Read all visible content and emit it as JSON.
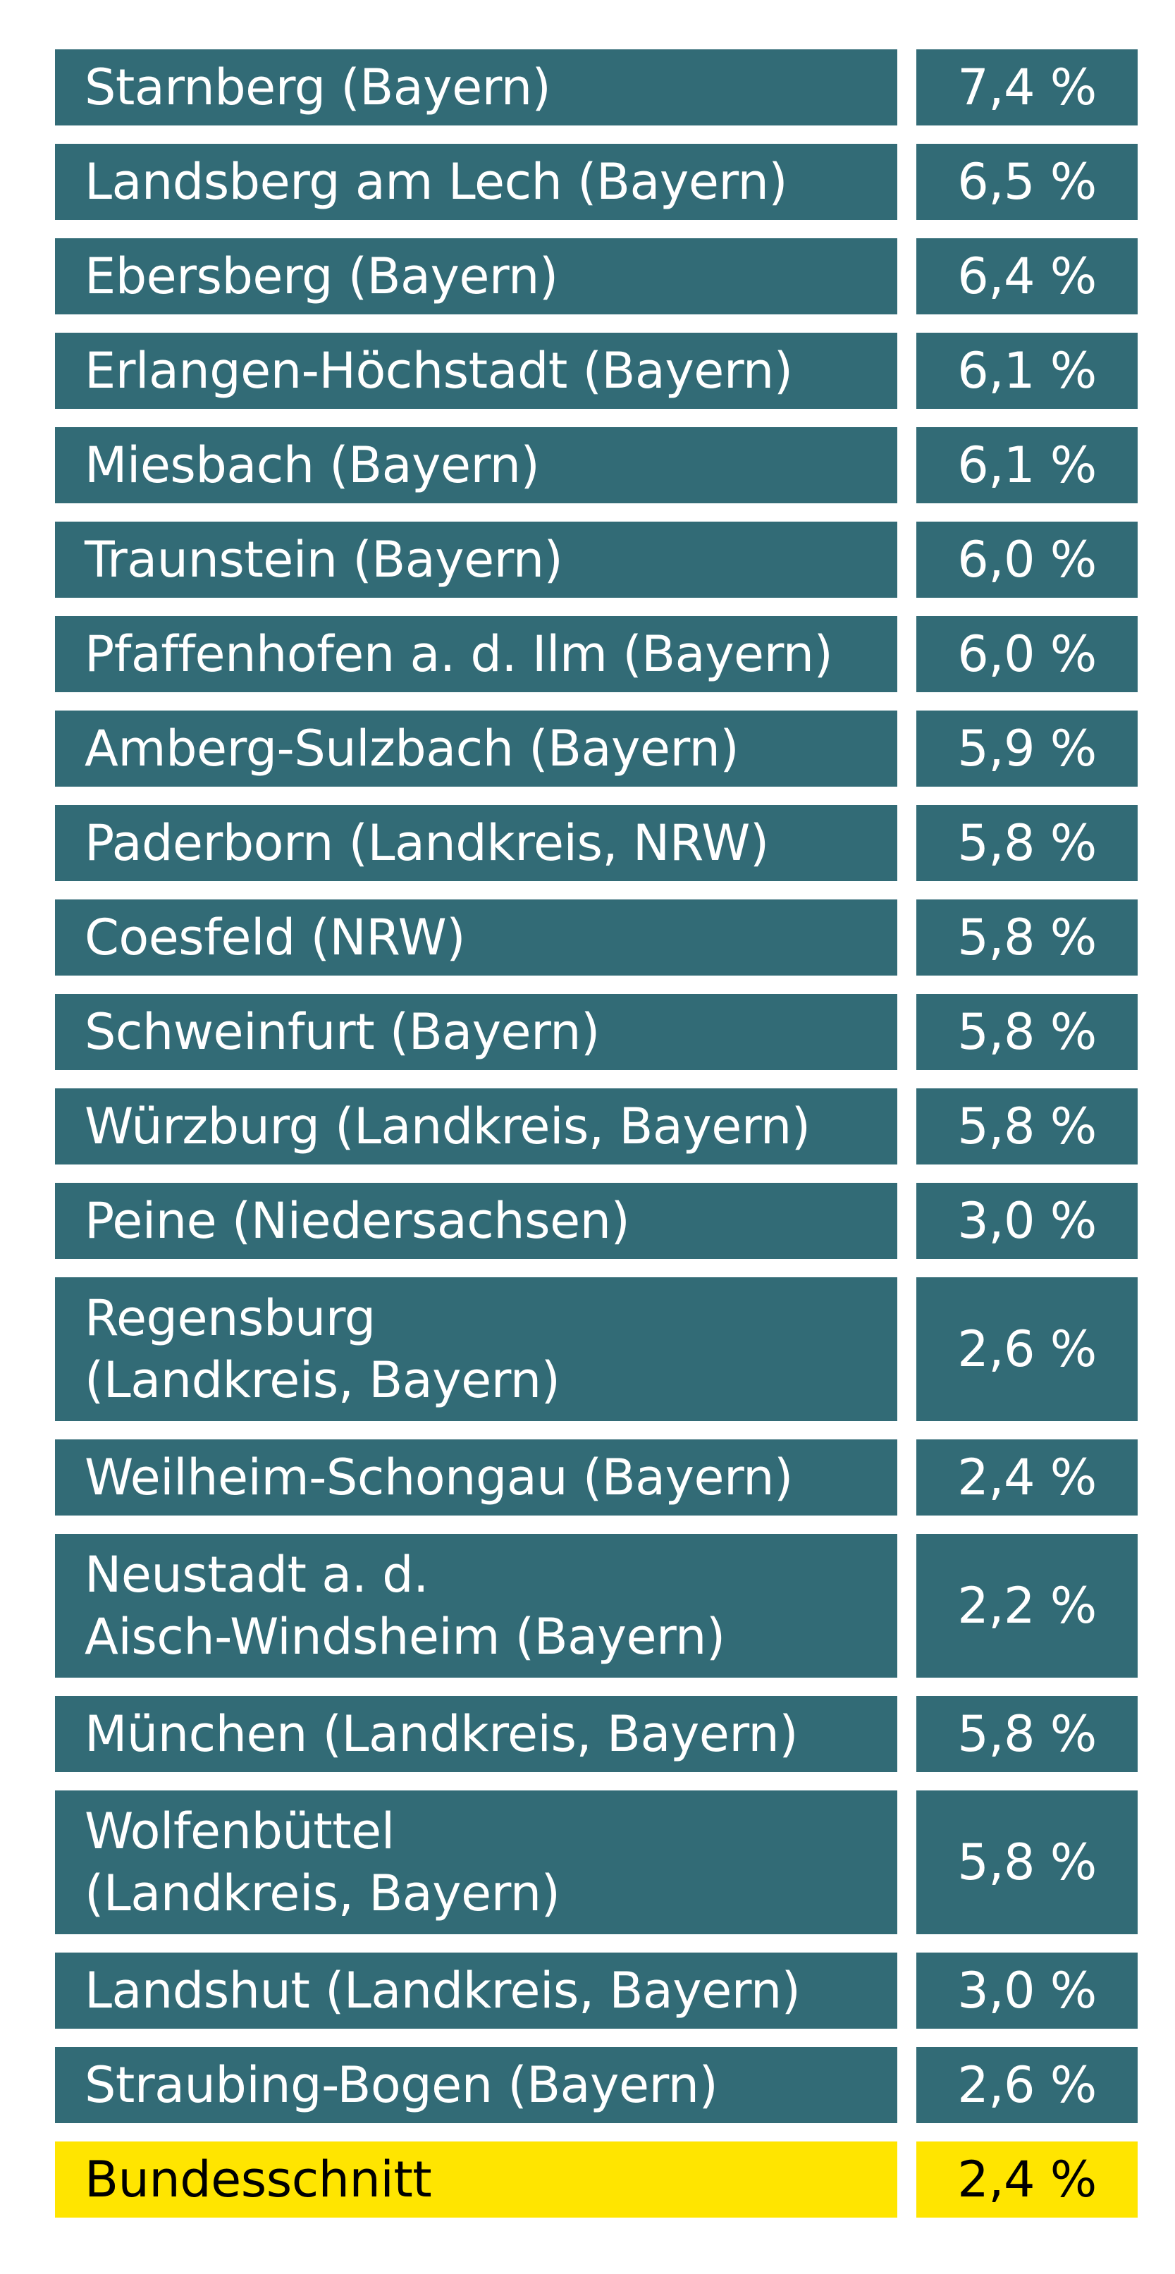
{
  "chart_data": {
    "type": "table",
    "columns": [
      "",
      ""
    ],
    "unit": "%",
    "rows": [
      {
        "label": "Starnberg (Bayern)",
        "value": 7.4,
        "display": "7,4 %"
      },
      {
        "label": "Landsberg am Lech (Bayern)",
        "value": 6.5,
        "display": "6,5 %"
      },
      {
        "label": "Ebersberg (Bayern)",
        "value": 6.4,
        "display": "6,4 %"
      },
      {
        "label": "Erlangen-Höchstadt (Bayern)",
        "value": 6.1,
        "display": "6,1 %"
      },
      {
        "label": "Miesbach (Bayern)",
        "value": 6.1,
        "display": "6,1 %"
      },
      {
        "label": "Traunstein (Bayern)",
        "value": 6.0,
        "display": "6,0 %"
      },
      {
        "label": "Pfaffenhofen a. d. Ilm (Bayern)",
        "value": 6.0,
        "display": "6,0 %"
      },
      {
        "label": "Amberg-Sulzbach (Bayern)",
        "value": 5.9,
        "display": "5,9 %"
      },
      {
        "label": "Paderborn (Landkreis, NRW)",
        "value": 5.8,
        "display": "5,8 %"
      },
      {
        "label": "Coesfeld (NRW)",
        "value": 5.8,
        "display": "5,8 %"
      },
      {
        "label": "Schweinfurt (Bayern)",
        "value": 5.8,
        "display": "5,8 %"
      },
      {
        "label": "Würzburg (Landkreis, Bayern)",
        "value": 5.8,
        "display": "5,8 %"
      },
      {
        "label": "Peine (Niedersachsen)",
        "value": 3.0,
        "display": "3,0 %"
      },
      {
        "label": "Regensburg\n(Landkreis, Bayern)",
        "value": 2.6,
        "display": "2,6 %"
      },
      {
        "label": "Weilheim-Schongau (Bayern)",
        "value": 2.4,
        "display": "2,4 %"
      },
      {
        "label": "Neustadt a. d.\nAisch-Windsheim (Bayern)",
        "value": 2.2,
        "display": "2,2 %"
      },
      {
        "label": "München (Landkreis, Bayern)",
        "value": 5.8,
        "display": "5,8 %"
      },
      {
        "label": "Wolfenbüttel\n(Landkreis, Bayern)",
        "value": 5.8,
        "display": "5,8 %"
      },
      {
        "label": "Landshut (Landkreis, Bayern)",
        "value": 3.0,
        "display": "3,0 %"
      },
      {
        "label": "Straubing-Bogen (Bayern)",
        "value": 2.6,
        "display": "2,6 %"
      },
      {
        "label": "Bundesschnitt",
        "value": 2.4,
        "display": "2,4 %",
        "highlight": true
      }
    ]
  },
  "colors": {
    "row_background": "#326b76",
    "row_text": "#ffffff",
    "highlight_background": "#ffe500",
    "highlight_text": "#000000"
  }
}
